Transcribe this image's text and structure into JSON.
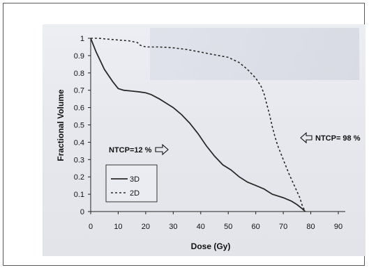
{
  "chart_data": {
    "type": "line",
    "xlabel": "Dose (Gy)",
    "ylabel": "Fractional Volume",
    "xlim": [
      0,
      90
    ],
    "ylim": [
      0,
      1
    ],
    "xticks": [
      0,
      10,
      20,
      30,
      40,
      50,
      60,
      70,
      80,
      90
    ],
    "yticks": [
      0,
      0.1,
      0.2,
      0.3,
      0.4,
      0.5,
      0.6,
      0.7,
      0.8,
      0.9,
      1
    ],
    "legend_position": "bottom-left",
    "series": [
      {
        "name": "3D",
        "style": "solid",
        "color": "#2a2a2a",
        "x": [
          0,
          2,
          5,
          8,
          10,
          12,
          15,
          18,
          20,
          22,
          25,
          28,
          30,
          33,
          36,
          39,
          42,
          45,
          48,
          51,
          54,
          57,
          60,
          63,
          66,
          70,
          73,
          75,
          77,
          78
        ],
        "y": [
          1.0,
          0.92,
          0.82,
          0.75,
          0.71,
          0.7,
          0.695,
          0.69,
          0.685,
          0.675,
          0.65,
          0.62,
          0.6,
          0.56,
          0.51,
          0.45,
          0.38,
          0.32,
          0.27,
          0.24,
          0.2,
          0.17,
          0.15,
          0.13,
          0.1,
          0.08,
          0.06,
          0.04,
          0.015,
          0.0
        ]
      },
      {
        "name": "2D",
        "style": "dashed",
        "color": "#2a2a2a",
        "x": [
          0,
          3,
          6,
          10,
          14,
          17,
          18,
          20,
          25,
          30,
          35,
          40,
          45,
          50,
          54,
          57,
          60,
          62,
          63,
          64,
          65,
          66,
          67,
          68,
          70,
          72,
          74,
          76,
          77,
          78
        ],
        "y": [
          1.0,
          1.0,
          0.995,
          0.99,
          0.985,
          0.975,
          0.96,
          0.95,
          0.95,
          0.945,
          0.935,
          0.92,
          0.905,
          0.89,
          0.86,
          0.82,
          0.77,
          0.72,
          0.68,
          0.62,
          0.56,
          0.49,
          0.43,
          0.38,
          0.3,
          0.22,
          0.15,
          0.08,
          0.03,
          0.0
        ]
      }
    ],
    "annotations": [
      {
        "text": "NTCP=12 %",
        "arrow": "right"
      },
      {
        "text": "NTCP= 98 %",
        "arrow": "left"
      }
    ]
  }
}
